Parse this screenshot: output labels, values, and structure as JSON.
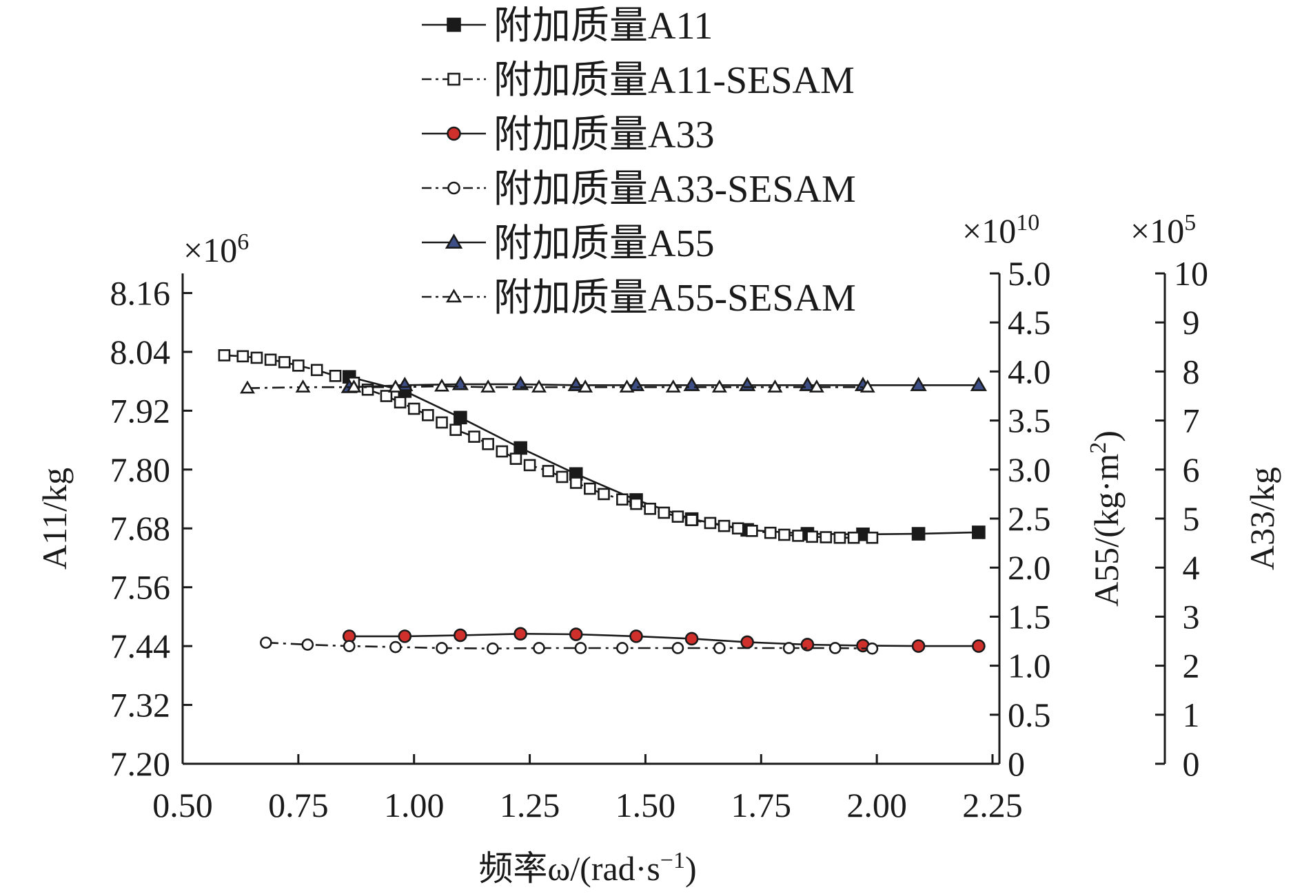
{
  "chart_data": {
    "type": "line",
    "x": {
      "label": "频率ω/(rad·s⁻¹)",
      "label_main": "频率ω/(rad·s",
      "label_sup": "−1",
      "label_tail": ")",
      "range": [
        0.5,
        2.25
      ],
      "ticks": [
        "0.50",
        "0.75",
        "1.00",
        "1.25",
        "1.50",
        "1.75",
        "2.00",
        "2.25"
      ]
    },
    "axes": {
      "A11": {
        "label": "A11/kg",
        "exponent": "×10",
        "exponent_power": "6",
        "range": [
          7.2,
          8.2
        ],
        "ticks": [
          "7.20",
          "7.32",
          "7.44",
          "7.56",
          "7.68",
          "7.80",
          "7.92",
          "8.04",
          "8.16"
        ]
      },
      "A55": {
        "label": "A55/(kg·m²)",
        "label_main": "A55/(kg·m",
        "label_sup": "2",
        "label_tail": ")",
        "exponent": "×10",
        "exponent_power": "10",
        "range": [
          0,
          5
        ],
        "ticks": [
          "0",
          "0.5",
          "1.0",
          "1.5",
          "2.0",
          "2.5",
          "3.0",
          "3.5",
          "4.0",
          "4.5",
          "5.0"
        ]
      },
      "A33": {
        "label": "A33/kg",
        "exponent": "×10",
        "exponent_power": "5",
        "range": [
          0,
          10
        ],
        "ticks": [
          "0",
          "1",
          "2",
          "3",
          "4",
          "5",
          "6",
          "7",
          "8",
          "9",
          "10"
        ]
      }
    },
    "legend_position": "top",
    "series": [
      {
        "name": "附加质量A11",
        "axis": "A11",
        "marker": "square",
        "filled": true,
        "fill": "#1a1a1a",
        "line": "solid",
        "x": [
          0.86,
          0.98,
          1.1,
          1.23,
          1.35,
          1.48,
          1.6,
          1.72,
          1.85,
          1.97,
          2.09,
          2.22
        ],
        "y": [
          7.989,
          7.96,
          7.906,
          7.844,
          7.791,
          7.738,
          7.699,
          7.677,
          7.669,
          7.668,
          7.669,
          7.672
        ]
      },
      {
        "name": "附加质量A11-SESAM",
        "axis": "A11",
        "marker": "square",
        "filled": false,
        "fill": "#ffffff",
        "line": "dashdot",
        "x": [
          0.59,
          0.63,
          0.66,
          0.69,
          0.72,
          0.75,
          0.79,
          0.83,
          0.87,
          0.9,
          0.94,
          0.97,
          1.0,
          1.03,
          1.06,
          1.09,
          1.13,
          1.16,
          1.19,
          1.22,
          1.25,
          1.29,
          1.32,
          1.35,
          1.38,
          1.41,
          1.45,
          1.48,
          1.51,
          1.54,
          1.57,
          1.6,
          1.64,
          1.67,
          1.7,
          1.73,
          1.77,
          1.8,
          1.83,
          1.86,
          1.89,
          1.92,
          1.95,
          1.99
        ],
        "y": [
          8.033,
          8.031,
          8.028,
          8.024,
          8.019,
          8.012,
          8.003,
          7.991,
          7.977,
          7.963,
          7.95,
          7.937,
          7.924,
          7.911,
          7.896,
          7.881,
          7.867,
          7.852,
          7.837,
          7.822,
          7.809,
          7.797,
          7.785,
          7.773,
          7.761,
          7.75,
          7.739,
          7.73,
          7.72,
          7.712,
          7.704,
          7.697,
          7.691,
          7.685,
          7.68,
          7.675,
          7.671,
          7.667,
          7.665,
          7.663,
          7.662,
          7.661,
          7.661,
          7.661
        ]
      },
      {
        "name": "附加质量A33",
        "axis": "A33",
        "marker": "circle",
        "filled": true,
        "fill": "#d0302b",
        "line": "solid",
        "x": [
          0.86,
          0.98,
          1.1,
          1.23,
          1.35,
          1.48,
          1.6,
          1.72,
          1.85,
          1.97,
          2.09,
          2.22
        ],
        "y": [
          2.6,
          2.6,
          2.62,
          2.65,
          2.64,
          2.6,
          2.55,
          2.48,
          2.43,
          2.41,
          2.4,
          2.4
        ]
      },
      {
        "name": "附加质量A33-SESAM",
        "axis": "A33",
        "marker": "circle",
        "filled": false,
        "fill": "#ffffff",
        "line": "dashdot",
        "x": [
          0.68,
          0.77,
          0.86,
          0.96,
          1.06,
          1.17,
          1.27,
          1.36,
          1.45,
          1.57,
          1.66,
          1.81,
          1.91,
          1.99
        ],
        "y": [
          2.47,
          2.43,
          2.4,
          2.38,
          2.36,
          2.35,
          2.36,
          2.36,
          2.36,
          2.36,
          2.36,
          2.36,
          2.36,
          2.35
        ]
      },
      {
        "name": "附加质量A55",
        "axis": "A55",
        "marker": "triangle",
        "filled": true,
        "fill": "#3d4f86",
        "line": "solid",
        "x": [
          0.86,
          0.98,
          1.1,
          1.23,
          1.35,
          1.48,
          1.6,
          1.72,
          1.85,
          1.97,
          2.09,
          2.22
        ],
        "y": [
          3.84,
          3.86,
          3.87,
          3.87,
          3.86,
          3.86,
          3.86,
          3.86,
          3.86,
          3.86,
          3.86,
          3.86
        ]
      },
      {
        "name": "附加质量A55-SESAM",
        "axis": "A55",
        "marker": "triangle",
        "filled": false,
        "fill": "#ffffff",
        "line": "dashdot",
        "x": [
          0.64,
          0.76,
          0.87,
          0.96,
          1.06,
          1.16,
          1.27,
          1.37,
          1.46,
          1.56,
          1.66,
          1.78,
          1.87,
          1.98
        ],
        "y": [
          3.83,
          3.84,
          3.84,
          3.84,
          3.85,
          3.84,
          3.84,
          3.84,
          3.84,
          3.84,
          3.84,
          3.84,
          3.84,
          3.84
        ]
      }
    ],
    "colors": {
      "ink": "#1a1a1a",
      "a33_fill": "#d0302b",
      "a55_fill": "#3d4f86"
    }
  }
}
